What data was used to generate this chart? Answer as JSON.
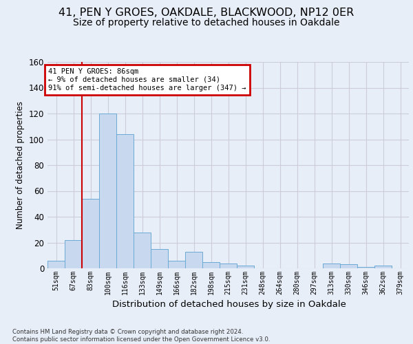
{
  "title_line1": "41, PEN Y GROES, OAKDALE, BLACKWOOD, NP12 0ER",
  "title_line2": "Size of property relative to detached houses in Oakdale",
  "xlabel": "Distribution of detached houses by size in Oakdale",
  "ylabel": "Number of detached properties",
  "bin_labels": [
    "51sqm",
    "67sqm",
    "83sqm",
    "100sqm",
    "116sqm",
    "133sqm",
    "149sqm",
    "166sqm",
    "182sqm",
    "198sqm",
    "215sqm",
    "231sqm",
    "248sqm",
    "264sqm",
    "280sqm",
    "297sqm",
    "313sqm",
    "330sqm",
    "346sqm",
    "362sqm",
    "379sqm"
  ],
  "bar_values": [
    6,
    22,
    54,
    120,
    104,
    28,
    15,
    6,
    13,
    5,
    4,
    2,
    0,
    0,
    0,
    0,
    4,
    3,
    1,
    2,
    0
  ],
  "bar_color": "#c8d8ee",
  "bar_edge_color": "#6aaad4",
  "vline_color": "#cc0000",
  "vline_x": 2,
  "annotation_text": "41 PEN Y GROES: 86sqm\n← 9% of detached houses are smaller (34)\n91% of semi-detached houses are larger (347) →",
  "annotation_box_facecolor": "white",
  "annotation_box_edgecolor": "#cc0000",
  "ylim": [
    0,
    160
  ],
  "yticks": [
    0,
    20,
    40,
    60,
    80,
    100,
    120,
    140,
    160
  ],
  "background_color": "#e8eef8",
  "grid_color": "#ccccdd",
  "footer_line1": "Contains HM Land Registry data © Crown copyright and database right 2024.",
  "footer_line2": "Contains public sector information licensed under the Open Government Licence v3.0."
}
